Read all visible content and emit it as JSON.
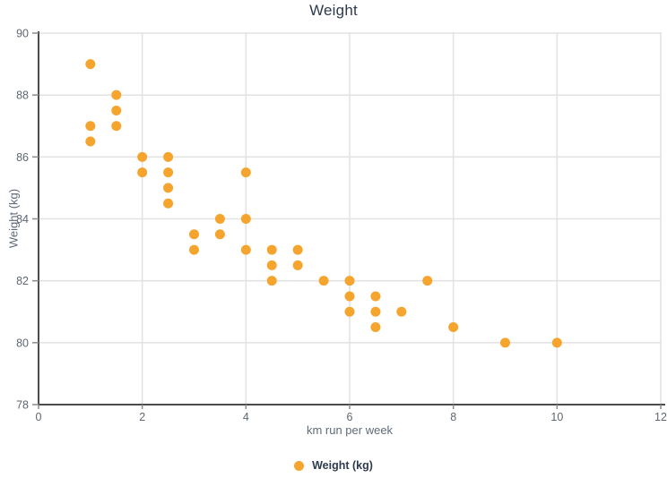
{
  "chart_data": {
    "type": "scatter",
    "title": "Weight",
    "xlabel": "km run per week",
    "ylabel": "Weight (kg)",
    "xlim": [
      0,
      12
    ],
    "ylim": [
      78,
      90
    ],
    "xticks": [
      0,
      2,
      4,
      6,
      8,
      10,
      12
    ],
    "yticks": [
      78,
      80,
      82,
      84,
      86,
      88,
      90
    ],
    "grid": true,
    "legend": {
      "label": "Weight (kg)",
      "position": "bottom"
    },
    "series": [
      {
        "name": "Weight (kg)",
        "points": [
          [
            1,
            89
          ],
          [
            1,
            87
          ],
          [
            1,
            86.5
          ],
          [
            1.5,
            88
          ],
          [
            1.5,
            87.5
          ],
          [
            1.5,
            87
          ],
          [
            2,
            86
          ],
          [
            2,
            85.5
          ],
          [
            2.5,
            86
          ],
          [
            2.5,
            85.5
          ],
          [
            2.5,
            85
          ],
          [
            2.5,
            84.5
          ],
          [
            3,
            83.5
          ],
          [
            3,
            83
          ],
          [
            3.5,
            84
          ],
          [
            3.5,
            83.5
          ],
          [
            4,
            85.5
          ],
          [
            4,
            84
          ],
          [
            4,
            83
          ],
          [
            4.5,
            83
          ],
          [
            4.5,
            82.5
          ],
          [
            4.5,
            82
          ],
          [
            5,
            83
          ],
          [
            5,
            82.5
          ],
          [
            5.5,
            82
          ],
          [
            6,
            82
          ],
          [
            6,
            81.5
          ],
          [
            6,
            81
          ],
          [
            6.5,
            81.5
          ],
          [
            6.5,
            81
          ],
          [
            6.5,
            80.5
          ],
          [
            7,
            81
          ],
          [
            7.5,
            82
          ],
          [
            8,
            80.5
          ],
          [
            9,
            80
          ],
          [
            10,
            80
          ]
        ]
      }
    ],
    "colors": {
      "marker": "#F5A42E",
      "grid": "#e3e3e3",
      "axis": "#4c4c4c",
      "tick": "#8c8c8c",
      "tick_label": "#5f6770",
      "axis_title": "#5f6b78",
      "title": "#2e3b4e",
      "legend_text": "#2e3b4e"
    }
  }
}
